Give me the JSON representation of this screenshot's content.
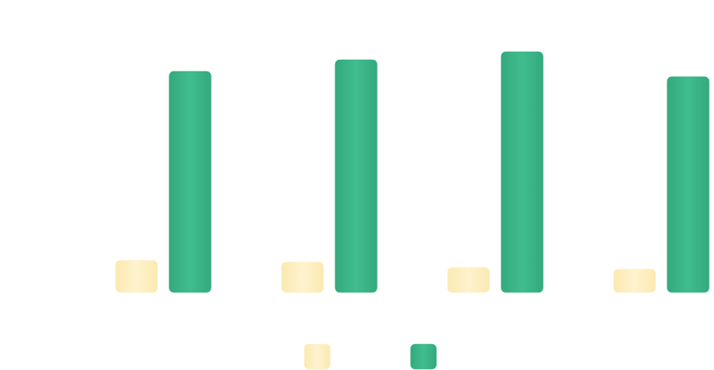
{
  "chart_data": {
    "type": "bar",
    "categories": [
      null,
      null,
      null,
      null
    ],
    "series": [
      {
        "color": "#fdefc0",
        "values": [
          36,
          34,
          28,
          26
        ]
      },
      {
        "color": "#3db88a",
        "values": [
          248,
          261,
          270,
          242
        ]
      }
    ],
    "ylim": [
      0,
      280
    ]
  }
}
